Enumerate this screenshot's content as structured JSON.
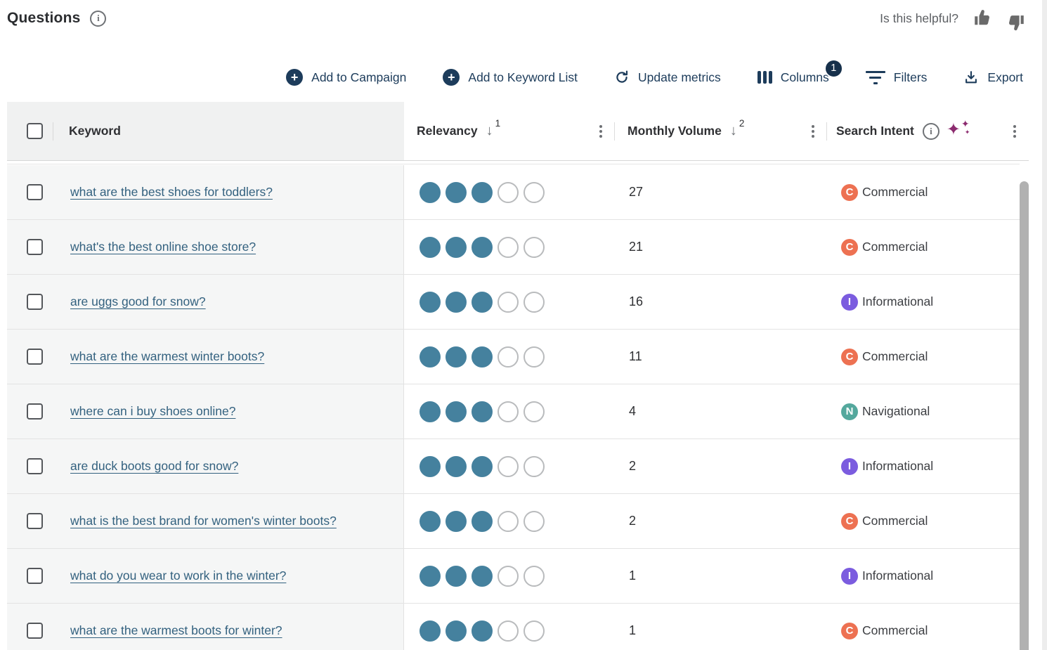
{
  "header": {
    "title": "Questions",
    "helpful_prompt": "Is this helpful?"
  },
  "toolbar": {
    "add_to_campaign": "Add to Campaign",
    "add_to_keyword_list": "Add to Keyword List",
    "update_metrics": "Update metrics",
    "columns": "Columns",
    "columns_badge": "1",
    "filters": "Filters",
    "export": "Export"
  },
  "table": {
    "columns": {
      "keyword": "Keyword",
      "relevancy": "Relevancy",
      "relevancy_sort_rank": "1",
      "monthly_volume": "Monthly Volume",
      "monthly_volume_sort_rank": "2",
      "search_intent": "Search Intent"
    },
    "relevancy_scale_max": 5,
    "rows": [
      {
        "keyword": "what are the best shoes for toddlers?",
        "relevancy": 3,
        "monthly_volume": "27",
        "intent": "Commercial",
        "intent_letter": "C"
      },
      {
        "keyword": "what's the best online shoe store?",
        "relevancy": 3,
        "monthly_volume": "21",
        "intent": "Commercial",
        "intent_letter": "C"
      },
      {
        "keyword": "are uggs good for snow?",
        "relevancy": 3,
        "monthly_volume": "16",
        "intent": "Informational",
        "intent_letter": "I"
      },
      {
        "keyword": "what are the warmest winter boots?",
        "relevancy": 3,
        "monthly_volume": "11",
        "intent": "Commercial",
        "intent_letter": "C"
      },
      {
        "keyword": "where can i buy shoes online?",
        "relevancy": 3,
        "monthly_volume": "4",
        "intent": "Navigational",
        "intent_letter": "N"
      },
      {
        "keyword": "are duck boots good for snow?",
        "relevancy": 3,
        "monthly_volume": "2",
        "intent": "Informational",
        "intent_letter": "I"
      },
      {
        "keyword": "what is the best brand for women's winter boots?",
        "relevancy": 3,
        "monthly_volume": "2",
        "intent": "Commercial",
        "intent_letter": "C"
      },
      {
        "keyword": "what do you wear to work in the winter?",
        "relevancy": 3,
        "monthly_volume": "1",
        "intent": "Informational",
        "intent_letter": "I"
      },
      {
        "keyword": "what are the warmest boots for winter?",
        "relevancy": 3,
        "monthly_volume": "1",
        "intent": "Commercial",
        "intent_letter": "C"
      }
    ]
  },
  "intent_colors": {
    "Commercial": "#ED7152",
    "Informational": "#7B5CDF",
    "Navigational": "#54A89D"
  },
  "colors": {
    "accent_navy": "#1D3C5B",
    "link_blue": "#33617F",
    "relevancy_dot": "#45819E",
    "sparkle_magenta": "#8C2B6F"
  }
}
